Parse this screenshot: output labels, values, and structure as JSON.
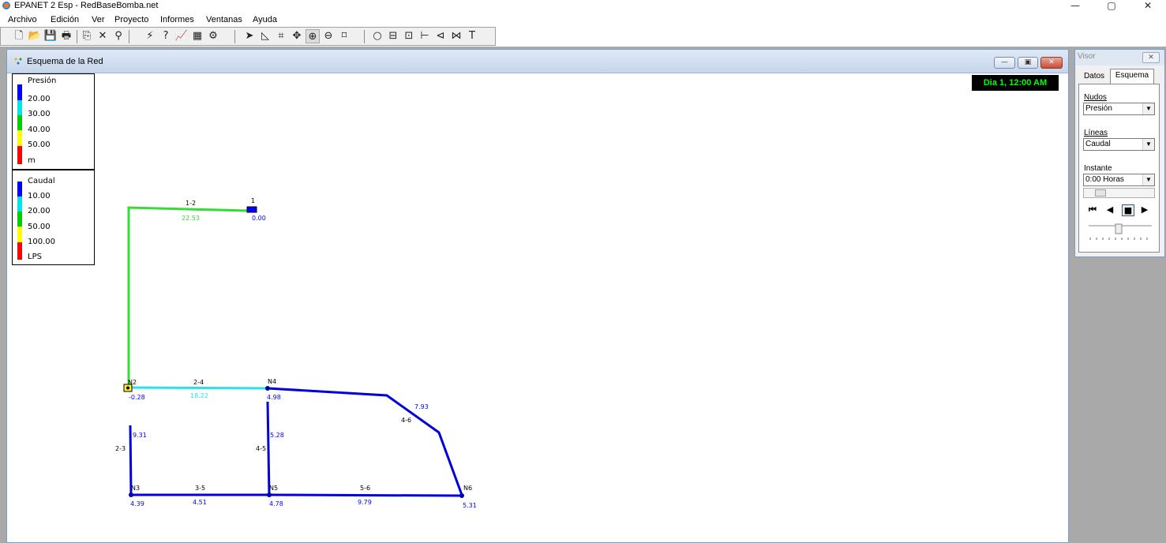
{
  "app": {
    "title": "EPANET 2 Esp - RedBaseBomba.net",
    "menu": [
      "Archivo",
      "Edición",
      "Ver",
      "Proyecto",
      "Informes",
      "Ventanas",
      "Ayuda"
    ],
    "window_controls": {
      "minimize": "—",
      "maximize": "▢",
      "close": "✕"
    }
  },
  "toolbar": {
    "buttons": [
      "new-icon",
      "open-icon",
      "save-icon",
      "print-icon",
      "copy-icon",
      "delete-icon",
      "find-icon",
      "run-icon",
      "query-icon",
      "graph-icon",
      "table-icon",
      "options-icon",
      "select-icon",
      "select-vertex-icon",
      "select-region-icon",
      "pan-icon",
      "zoom-in-icon",
      "zoom-out-icon",
      "full-extent-icon",
      "add-junction-icon",
      "add-reservoir-icon",
      "add-tank-icon",
      "add-pipe-icon",
      "add-pump-icon",
      "add-valve-icon",
      "add-label-icon"
    ],
    "glyphs": [
      "🗋",
      "📂",
      "💾",
      "🖶",
      "⎘",
      "✕",
      "⚲",
      "⚡",
      "?",
      "📈",
      "▦",
      "⚙",
      "➤",
      "◺",
      "⌗",
      "✥",
      "⊕",
      "⊖",
      "⌑",
      "○",
      "⊟",
      "⊡",
      "⊢",
      "⊲",
      "⋈",
      "T"
    ]
  },
  "map_window": {
    "title": "Esquema de la Red",
    "time": "Dia 1, 12:00 AM",
    "buttons": {
      "minimize": "—",
      "restore": "▣",
      "close": "✕"
    }
  },
  "legend_pressure": {
    "title": "Presión",
    "labels": [
      "20.00",
      "30.00",
      "40.00",
      "50.00",
      "m"
    ],
    "colors": [
      "#0000ff",
      "#00e6e6",
      "#00cc00",
      "#ffff00",
      "#ff0000"
    ]
  },
  "legend_flow": {
    "title": "Caudal",
    "labels": [
      "10.00",
      "20.00",
      "50.00",
      "100.00",
      "LPS"
    ],
    "colors": [
      "#0000ff",
      "#00e6e6",
      "#00cc00",
      "#ffff00",
      "#ff0000"
    ]
  },
  "network": {
    "nodes": [
      {
        "id": "1",
        "value": "0.00",
        "type": "reservoir"
      },
      {
        "id": "N2",
        "value": "-0.28",
        "type": "junction"
      },
      {
        "id": "N3",
        "value": "4.39",
        "type": "junction"
      },
      {
        "id": "N4",
        "value": "4.98",
        "type": "junction"
      },
      {
        "id": "N5",
        "value": "4.78",
        "type": "junction"
      },
      {
        "id": "N6",
        "value": "5.31",
        "type": "junction"
      }
    ],
    "links": [
      {
        "id": "1-2",
        "value": "22.53"
      },
      {
        "id": "2-4",
        "value": "18.22"
      },
      {
        "id": "2-3",
        "value": "9.31"
      },
      {
        "id": "4-5",
        "value": "5.28"
      },
      {
        "id": "4-6",
        "value": "7.93"
      },
      {
        "id": "3-5",
        "value": "4.51"
      },
      {
        "id": "5-6",
        "value": "9.79"
      }
    ]
  },
  "visor": {
    "title": "Visor",
    "tabs": [
      "Datos",
      "Esquema"
    ],
    "active_tab": "Esquema",
    "nodos_label": "Nudos",
    "nodos_value": "Presión",
    "lineas_label": "Líneas",
    "lineas_value": "Caudal",
    "instante_label": "Instante",
    "instante_value": "0:00 Horas",
    "playback": [
      "⏮",
      "◀",
      "■",
      "▶"
    ]
  }
}
